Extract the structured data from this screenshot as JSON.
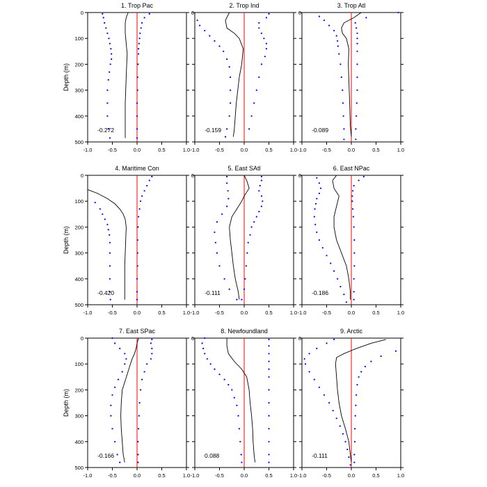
{
  "figure": {
    "ylabel": "Depth (m)"
  },
  "chart_data": [
    {
      "type": "line",
      "title": "1. Trop Pac",
      "value_label": "-0.272",
      "xlim": [
        -1,
        1
      ],
      "ylim": [
        500,
        0
      ],
      "xticks": [
        "-1.0",
        "-0.5",
        "0.0",
        "0.5",
        "1.0"
      ],
      "yticks": [
        "0",
        "100",
        "200",
        "300",
        "400",
        "500"
      ],
      "ylabel": "Depth (m)",
      "mean": {
        "depth": [
          0,
          20,
          40,
          80,
          120,
          160,
          200,
          250,
          300,
          350,
          400,
          450,
          485
        ],
        "value": [
          -0.18,
          -0.22,
          -0.24,
          -0.24,
          -0.22,
          -0.2,
          -0.21,
          -0.22,
          -0.23,
          -0.24,
          -0.24,
          -0.24,
          -0.24
        ]
      },
      "lower": {
        "depth": [
          5,
          20,
          40,
          60,
          80,
          100,
          120,
          140,
          160,
          180,
          200,
          230,
          260,
          300,
          350,
          400,
          450,
          485
        ],
        "value": [
          -0.7,
          -0.68,
          -0.66,
          -0.63,
          -0.6,
          -0.57,
          -0.55,
          -0.53,
          -0.52,
          -0.52,
          -0.54,
          -0.56,
          -0.58,
          -0.6,
          -0.6,
          -0.6,
          -0.58,
          -0.55
        ]
      },
      "upper": {
        "depth": [
          5,
          20,
          40,
          60,
          80,
          100,
          120,
          140,
          160,
          200,
          250,
          300,
          350,
          400,
          450,
          485
        ],
        "value": [
          0.25,
          0.15,
          0.1,
          0.08,
          0.06,
          0.05,
          0.04,
          0.03,
          0.03,
          0.02,
          0.01,
          0.01,
          0.0,
          0.0,
          0.0,
          0.0
        ]
      }
    },
    {
      "type": "line",
      "title": "2. Trop Ind",
      "value_label": "-0.159",
      "xlim": [
        -1,
        1
      ],
      "ylim": [
        500,
        0
      ],
      "xticks": [
        "-1.0",
        "-0.5",
        "0.0",
        "0.5",
        "1.0"
      ],
      "yticks": [
        "0",
        "100",
        "200",
        "300",
        "400",
        "500"
      ],
      "ylabel": "",
      "mean": {
        "depth": [
          0,
          30,
          60,
          80,
          100,
          140,
          200,
          250,
          300,
          350,
          400,
          450,
          480
        ],
        "value": [
          -0.3,
          -0.38,
          -0.35,
          -0.2,
          -0.1,
          -0.02,
          -0.05,
          -0.1,
          -0.13,
          -0.16,
          -0.18,
          -0.2,
          -0.22
        ]
      },
      "lower": {
        "depth": [
          30,
          50,
          70,
          90,
          110,
          130,
          150,
          180,
          210,
          250,
          300,
          350,
          400,
          450,
          480
        ],
        "value": [
          -0.95,
          -0.9,
          -0.8,
          -0.7,
          -0.6,
          -0.5,
          -0.42,
          -0.35,
          -0.3,
          -0.28,
          -0.28,
          -0.28,
          -0.3,
          -0.35,
          -0.38
        ]
      },
      "upper": {
        "depth": [
          5,
          20,
          40,
          60,
          80,
          100,
          120,
          140,
          170,
          200,
          250,
          300,
          350,
          400,
          450
        ],
        "value": [
          0.5,
          0.45,
          0.3,
          0.3,
          0.35,
          0.4,
          0.45,
          0.45,
          0.42,
          0.35,
          0.3,
          0.25,
          0.2,
          0.15,
          0.1
        ]
      }
    },
    {
      "type": "line",
      "title": "3. Trop Atl",
      "value_label": "-0.089",
      "xlim": [
        -1,
        1
      ],
      "ylim": [
        500,
        0
      ],
      "xticks": [
        "-1.0",
        "-0.5",
        "0.0",
        "0.5",
        "1.0"
      ],
      "yticks": [
        "0",
        "100",
        "200",
        "300",
        "400",
        "500"
      ],
      "ylabel": "",
      "mean": {
        "depth": [
          0,
          20,
          40,
          60,
          80,
          100,
          140,
          200,
          260,
          320,
          380,
          440,
          480
        ],
        "value": [
          0.2,
          0.05,
          -0.15,
          -0.2,
          -0.18,
          -0.1,
          -0.05,
          -0.06,
          -0.05,
          -0.04,
          -0.03,
          -0.02,
          0.0
        ]
      },
      "lower": {
        "depth": [
          15,
          30,
          50,
          70,
          90,
          110,
          130,
          160,
          200,
          250,
          300,
          350,
          400,
          450,
          490
        ],
        "value": [
          -0.65,
          -0.55,
          -0.45,
          -0.35,
          -0.3,
          -0.28,
          -0.27,
          -0.25,
          -0.22,
          -0.2,
          -0.18,
          -0.17,
          -0.16,
          -0.15,
          -0.15
        ]
      },
      "upper": {
        "depth": [
          0,
          20,
          40,
          60,
          80,
          100,
          120,
          150,
          200,
          250,
          300,
          350,
          400,
          450,
          490
        ],
        "value": [
          0.95,
          0.3,
          0.08,
          0.1,
          0.12,
          0.12,
          0.12,
          0.12,
          0.12,
          0.12,
          0.12,
          0.11,
          0.1,
          0.09,
          0.09
        ]
      }
    },
    {
      "type": "line",
      "title": "4. Maritime Con",
      "value_label": "-0.420",
      "xlim": [
        -1,
        1
      ],
      "ylim": [
        500,
        0
      ],
      "xticks": [
        "-1.0",
        "-0.5",
        "0.0",
        "0.5",
        "1.0"
      ],
      "yticks": [
        "0",
        "100",
        "200",
        "300",
        "400",
        "500"
      ],
      "ylabel": "Depth (m)",
      "mean": {
        "depth": [
          55,
          70,
          90,
          110,
          130,
          150,
          170,
          200,
          250,
          300,
          350,
          400,
          450,
          480
        ],
        "value": [
          -1.0,
          -0.8,
          -0.6,
          -0.45,
          -0.35,
          -0.28,
          -0.24,
          -0.22,
          -0.23,
          -0.24,
          -0.25,
          -0.25,
          -0.25,
          -0.25
        ]
      },
      "lower": {
        "depth": [
          105,
          130,
          150,
          170,
          190,
          210,
          230,
          260,
          300,
          350,
          400,
          450,
          480
        ],
        "value": [
          -0.85,
          -0.75,
          -0.7,
          -0.65,
          -0.6,
          -0.58,
          -0.56,
          -0.55,
          -0.55,
          -0.55,
          -0.55,
          -0.55,
          -0.54
        ]
      },
      "upper": {
        "depth": [
          5,
          20,
          40,
          60,
          80,
          100,
          130,
          160,
          200,
          250,
          300,
          350,
          400,
          450,
          480
        ],
        "value": [
          0.3,
          0.25,
          0.2,
          0.15,
          0.1,
          0.07,
          0.05,
          0.03,
          0.02,
          0.01,
          0.01,
          0.01,
          0.0,
          0.0,
          0.0
        ]
      }
    },
    {
      "type": "line",
      "title": "5. East SAtl",
      "value_label": "-0.111",
      "xlim": [
        -1,
        1
      ],
      "ylim": [
        500,
        0
      ],
      "xticks": [
        "-1.0",
        "-0.5",
        "0.0",
        "0.5",
        "1.0"
      ],
      "yticks": [
        "0",
        "100",
        "200",
        "300",
        "400",
        "500"
      ],
      "ylabel": "",
      "mean": {
        "depth": [
          0,
          20,
          50,
          80,
          100,
          130,
          160,
          200,
          250,
          300,
          350,
          400,
          450,
          480
        ],
        "value": [
          0.0,
          0.05,
          0.1,
          0.0,
          -0.05,
          -0.15,
          -0.25,
          -0.3,
          -0.28,
          -0.25,
          -0.22,
          -0.18,
          -0.12,
          -0.1
        ]
      },
      "lower": {
        "depth": [
          5,
          30,
          60,
          90,
          120,
          150,
          180,
          220,
          260,
          300,
          350,
          400,
          440,
          480
        ],
        "value": [
          -0.35,
          -0.35,
          -0.33,
          -0.32,
          -0.35,
          -0.45,
          -0.55,
          -0.6,
          -0.58,
          -0.55,
          -0.5,
          -0.4,
          -0.3,
          -0.15
        ]
      },
      "upper": {
        "depth": [
          5,
          20,
          40,
          60,
          80,
          100,
          120,
          140,
          160,
          180,
          200,
          230,
          260,
          300,
          350,
          400,
          440,
          480
        ],
        "value": [
          0.35,
          0.35,
          0.32,
          0.3,
          0.35,
          0.37,
          0.35,
          0.3,
          0.25,
          0.2,
          0.15,
          0.12,
          0.08,
          0.06,
          0.04,
          0.02,
          0.0,
          -0.05
        ]
      }
    },
    {
      "type": "line",
      "title": "6. East NPac",
      "value_label": "-0.186",
      "xlim": [
        -1,
        1
      ],
      "ylim": [
        500,
        0
      ],
      "xticks": [
        "-1.0",
        "-0.5",
        "0.0",
        "0.5",
        "1.0"
      ],
      "yticks": [
        "0",
        "100",
        "200",
        "300",
        "400",
        "500"
      ],
      "ylabel": "",
      "mean": {
        "depth": [
          0,
          20,
          50,
          80,
          120,
          160,
          200,
          250,
          300,
          350,
          400,
          450,
          480
        ],
        "value": [
          -0.3,
          -0.38,
          -0.35,
          -0.25,
          -0.3,
          -0.35,
          -0.35,
          -0.3,
          -0.2,
          -0.1,
          -0.05,
          -0.02,
          -0.02
        ]
      },
      "lower": {
        "depth": [
          10,
          30,
          50,
          70,
          90,
          110,
          130,
          160,
          190,
          220,
          250,
          280,
          310,
          340,
          370,
          400,
          430,
          460,
          490
        ],
        "value": [
          -0.7,
          -0.65,
          -0.62,
          -0.65,
          -0.7,
          -0.72,
          -0.74,
          -0.75,
          -0.73,
          -0.7,
          -0.65,
          -0.58,
          -0.5,
          -0.42,
          -0.35,
          -0.28,
          -0.22,
          -0.15,
          -0.1
        ]
      },
      "upper": {
        "depth": [
          5,
          20,
          40,
          60,
          80,
          100,
          130,
          160,
          200,
          250,
          300,
          350,
          400,
          450,
          480
        ],
        "value": [
          0.25,
          0.15,
          0.05,
          0.03,
          0.02,
          0.02,
          0.03,
          0.04,
          0.05,
          0.06,
          0.06,
          0.06,
          0.05,
          0.05,
          0.05
        ]
      }
    },
    {
      "type": "line",
      "title": "7. East SPac",
      "value_label": "-0.166",
      "xlim": [
        -1,
        1
      ],
      "ylim": [
        500,
        0
      ],
      "xticks": [
        "-1.0",
        "-0.5",
        "0.0",
        "0.5",
        "1.0"
      ],
      "yticks": [
        "0",
        "100",
        "200",
        "300",
        "400",
        "500"
      ],
      "ylabel": "Depth (m)",
      "mean": {
        "depth": [
          0,
          20,
          40,
          60,
          80,
          110,
          140,
          170,
          200,
          250,
          300,
          350,
          400,
          450,
          480
        ],
        "value": [
          0.03,
          0.0,
          -0.02,
          -0.05,
          -0.1,
          -0.15,
          -0.2,
          -0.25,
          -0.3,
          -0.32,
          -0.33,
          -0.32,
          -0.3,
          -0.28,
          -0.25
        ]
      },
      "lower": {
        "depth": [
          0,
          20,
          40,
          60,
          80,
          100,
          130,
          160,
          190,
          220,
          260,
          300,
          350,
          400,
          450,
          480
        ],
        "value": [
          -0.5,
          -0.45,
          -0.35,
          -0.25,
          -0.22,
          -0.25,
          -0.3,
          -0.38,
          -0.45,
          -0.5,
          -0.53,
          -0.53,
          -0.5,
          -0.45,
          -0.4,
          -0.35
        ]
      },
      "upper": {
        "depth": [
          5,
          20,
          40,
          60,
          80,
          100,
          130,
          160,
          200,
          250,
          300,
          350,
          400,
          450,
          480
        ],
        "value": [
          0.3,
          0.28,
          0.3,
          0.3,
          0.28,
          0.2,
          0.15,
          0.1,
          0.07,
          0.05,
          0.04,
          0.03,
          0.02,
          0.02,
          0.02
        ]
      }
    },
    {
      "type": "line",
      "title": "8. Newfoundland",
      "value_label": "0.088",
      "xlim": [
        -1,
        1
      ],
      "ylim": [
        500,
        0
      ],
      "xticks": [
        "-1.0",
        "-0.5",
        "0.0",
        "0.5",
        "1.0"
      ],
      "yticks": [
        "0",
        "100",
        "200",
        "300",
        "400",
        "500"
      ],
      "ylabel": "",
      "mean": {
        "depth": [
          0,
          30,
          60,
          90,
          120,
          150,
          200,
          250,
          300,
          350,
          400,
          450,
          480
        ],
        "value": [
          -0.35,
          -0.35,
          -0.32,
          -0.2,
          -0.05,
          0.05,
          0.1,
          0.12,
          0.15,
          0.17,
          0.18,
          0.2,
          0.22
        ]
      },
      "lower": {
        "depth": [
          0,
          20,
          40,
          60,
          80,
          100,
          120,
          140,
          160,
          180,
          200,
          230,
          260,
          300,
          350,
          400,
          450,
          480
        ],
        "value": [
          -0.8,
          -0.85,
          -0.83,
          -0.8,
          -0.75,
          -0.68,
          -0.6,
          -0.5,
          -0.4,
          -0.32,
          -0.25,
          -0.2,
          -0.15,
          -0.12,
          -0.1,
          -0.08,
          -0.06,
          -0.05
        ]
      },
      "upper": {
        "depth": [
          5,
          30,
          60,
          90,
          120,
          150,
          200,
          250,
          300,
          350,
          400,
          450,
          480
        ],
        "value": [
          0.5,
          0.5,
          0.5,
          0.5,
          0.5,
          0.5,
          0.5,
          0.5,
          0.5,
          0.5,
          0.5,
          0.5,
          0.5
        ]
      }
    },
    {
      "type": "line",
      "title": "9. Arctic",
      "value_label": "-0.111",
      "xlim": [
        -1,
        1
      ],
      "ylim": [
        500,
        0
      ],
      "xticks": [
        "-1.0",
        "-0.5",
        "0.0",
        "0.5",
        "1.0"
      ],
      "yticks": [
        "0",
        "100",
        "200",
        "300",
        "400",
        "500"
      ],
      "ylabel": "",
      "mean": {
        "depth": [
          5,
          20,
          40,
          60,
          75,
          100,
          150,
          200,
          250,
          300,
          350,
          400,
          450,
          480
        ],
        "value": [
          0.7,
          0.4,
          0.1,
          -0.15,
          -0.3,
          -0.32,
          -0.3,
          -0.28,
          -0.25,
          -0.2,
          -0.12,
          -0.05,
          -0.02,
          0.0
        ]
      },
      "lower": {
        "depth": [
          5,
          20,
          40,
          60,
          80,
          100,
          130,
          160,
          190,
          220,
          250,
          280,
          310,
          340,
          370,
          400,
          430,
          460,
          490
        ],
        "value": [
          -0.35,
          -0.5,
          -0.7,
          -0.85,
          -0.95,
          -0.93,
          -0.85,
          -0.75,
          -0.65,
          -0.55,
          -0.45,
          -0.37,
          -0.3,
          -0.23,
          -0.17,
          -0.12,
          -0.08,
          -0.05,
          -0.02
        ]
      },
      "upper": {
        "depth": [
          50,
          70,
          90,
          110,
          130,
          150,
          180,
          220,
          260,
          300,
          350,
          400,
          450,
          480
        ],
        "value": [
          0.9,
          0.6,
          0.4,
          0.28,
          0.2,
          0.15,
          0.12,
          0.1,
          0.09,
          0.08,
          0.07,
          0.07,
          0.06,
          0.06
        ]
      }
    }
  ]
}
